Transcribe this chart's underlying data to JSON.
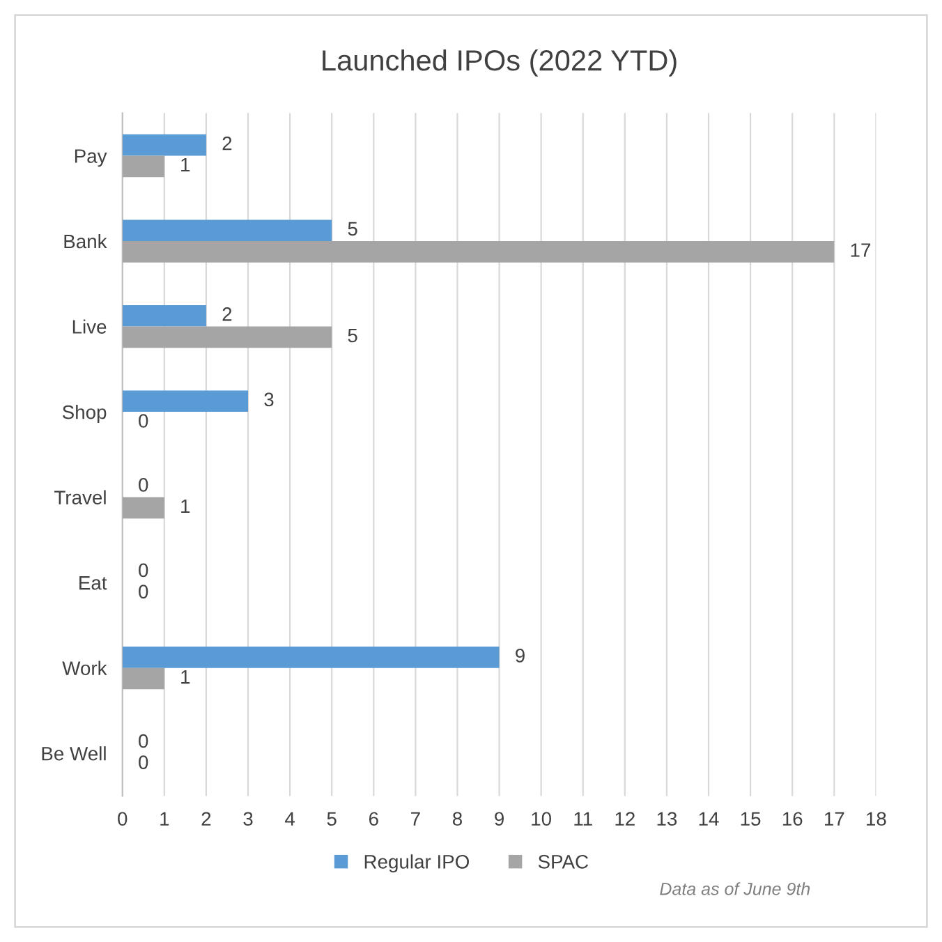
{
  "chart_data": {
    "type": "bar",
    "orientation": "horizontal",
    "title": "Launched IPOs (2022 YTD)",
    "categories": [
      "Pay",
      "Bank",
      "Live",
      "Shop",
      "Travel",
      "Eat",
      "Work",
      "Be Well"
    ],
    "series": [
      {
        "name": "Regular IPO",
        "color": "#5b9bd5",
        "values": [
          2,
          5,
          2,
          3,
          0,
          0,
          9,
          0
        ]
      },
      {
        "name": "SPAC",
        "color": "#a5a5a5",
        "values": [
          1,
          17,
          5,
          0,
          1,
          0,
          1,
          0
        ]
      }
    ],
    "xlim": [
      0,
      18
    ],
    "xticks": [
      0,
      1,
      2,
      3,
      4,
      5,
      6,
      7,
      8,
      9,
      10,
      11,
      12,
      13,
      14,
      15,
      16,
      17,
      18
    ],
    "grid": "x",
    "legend": "bottom",
    "data_labels": true,
    "annotations": [
      "Data as of June 9th"
    ]
  }
}
